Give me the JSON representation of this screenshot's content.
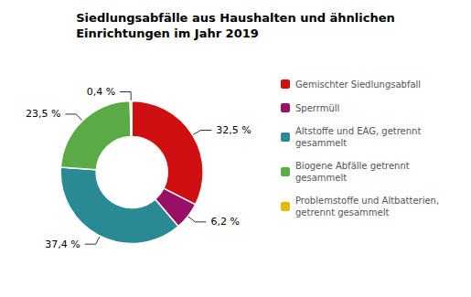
{
  "chart_data": {
    "type": "pie",
    "title": "Siedlungsabfälle aus Haushalten und ähnlichen\nEinrichtungen im Jahr 2019",
    "categories": [
      "Gemischter Siedlungsabfall",
      "Sperrmüll",
      "Altstoffe und EAG, getrennt\ngesammelt",
      "Biogene Abfälle getrennt\ngesammelt",
      "Problemstoffe und Altbatterien,\ngetrennt gesammelt"
    ],
    "values": [
      32.5,
      6.2,
      37.4,
      23.5,
      0.4
    ],
    "value_labels": [
      "32,5 %",
      "6,2 %",
      "37,4 %",
      "23,5 %",
      "0,4 %"
    ],
    "colors": [
      "#d01010",
      "#991166",
      "#2a8a94",
      "#5aaa46",
      "#e8b800"
    ],
    "data_labels": true,
    "legend": "right"
  }
}
